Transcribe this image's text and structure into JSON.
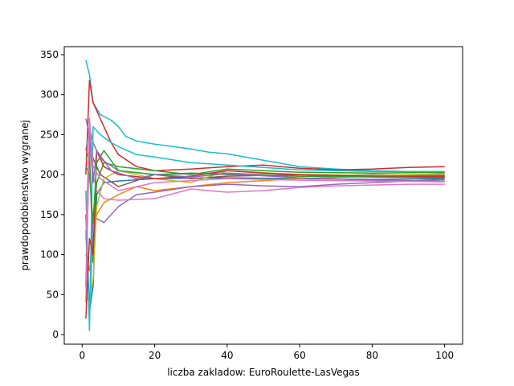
{
  "chart_data": {
    "type": "line",
    "xlabel": "liczba zakladow: EuroRoulette-LasVegas",
    "ylabel": "prawdopodobienstwo wygranej",
    "xlim": [
      -4.95,
      104.95
    ],
    "ylim": [
      -12,
      360
    ],
    "xticks": [
      0,
      20,
      40,
      60,
      80,
      100
    ],
    "yticks": [
      0,
      50,
      100,
      150,
      200,
      250,
      300,
      350
    ],
    "grid": false,
    "legend": "none",
    "series": [
      {
        "color": "#17becf",
        "values": [
          [
            1,
            343
          ],
          [
            2,
            325
          ],
          [
            3,
            290
          ],
          [
            5,
            275
          ],
          [
            8,
            268
          ],
          [
            10,
            260
          ],
          [
            12,
            248
          ],
          [
            15,
            242
          ],
          [
            20,
            238
          ],
          [
            25,
            235
          ],
          [
            30,
            232
          ],
          [
            35,
            228
          ],
          [
            40,
            226
          ],
          [
            50,
            218
          ],
          [
            60,
            210
          ],
          [
            70,
            207
          ],
          [
            80,
            205
          ],
          [
            90,
            204
          ],
          [
            100,
            202
          ]
        ]
      },
      {
        "color": "#d62728",
        "values": [
          [
            1,
            200
          ],
          [
            2,
            318
          ],
          [
            3,
            290
          ],
          [
            5,
            270
          ],
          [
            8,
            240
          ],
          [
            10,
            225
          ],
          [
            15,
            210
          ],
          [
            20,
            205
          ],
          [
            30,
            207
          ],
          [
            40,
            210
          ],
          [
            50,
            212
          ],
          [
            60,
            208
          ],
          [
            70,
            206
          ],
          [
            80,
            207
          ],
          [
            90,
            209
          ],
          [
            100,
            210
          ]
        ]
      },
      {
        "color": "#1f77b4",
        "values": [
          [
            1,
            150
          ],
          [
            2,
            30
          ],
          [
            3,
            60
          ],
          [
            4,
            175
          ],
          [
            6,
            190
          ],
          [
            10,
            192
          ],
          [
            20,
            195
          ],
          [
            40,
            196
          ],
          [
            60,
            195
          ],
          [
            80,
            194
          ],
          [
            100,
            195
          ]
        ]
      },
      {
        "color": "#ff7f0e",
        "values": [
          [
            1,
            100
          ],
          [
            2,
            80
          ],
          [
            3,
            120
          ],
          [
            4,
            150
          ],
          [
            6,
            165
          ],
          [
            10,
            175
          ],
          [
            15,
            185
          ],
          [
            20,
            180
          ],
          [
            30,
            185
          ],
          [
            40,
            190
          ],
          [
            60,
            195
          ],
          [
            80,
            198
          ],
          [
            100,
            200
          ]
        ]
      },
      {
        "color": "#2ca02c",
        "values": [
          [
            1,
            220
          ],
          [
            2,
            230
          ],
          [
            3,
            90
          ],
          [
            4,
            190
          ],
          [
            6,
            215
          ],
          [
            10,
            210
          ],
          [
            20,
            205
          ],
          [
            30,
            200
          ],
          [
            40,
            207
          ],
          [
            50,
            205
          ],
          [
            60,
            203
          ],
          [
            80,
            202
          ],
          [
            100,
            203
          ]
        ]
      },
      {
        "color": "#9467bd",
        "values": [
          [
            1,
            130
          ],
          [
            2,
            20
          ],
          [
            3,
            150
          ],
          [
            4,
            145
          ],
          [
            6,
            140
          ],
          [
            10,
            160
          ],
          [
            15,
            175
          ],
          [
            20,
            178
          ],
          [
            30,
            185
          ],
          [
            40,
            188
          ],
          [
            50,
            186
          ],
          [
            60,
            185
          ],
          [
            70,
            188
          ],
          [
            80,
            190
          ],
          [
            90,
            192
          ],
          [
            100,
            194
          ]
        ]
      },
      {
        "color": "#8c564b",
        "values": [
          [
            1,
            60
          ],
          [
            2,
            240
          ],
          [
            3,
            220
          ],
          [
            5,
            200
          ],
          [
            10,
            185
          ],
          [
            20,
            200
          ],
          [
            30,
            195
          ],
          [
            40,
            198
          ],
          [
            60,
            200
          ],
          [
            80,
            198
          ],
          [
            100,
            197
          ]
        ]
      },
      {
        "color": "#e377c2",
        "values": [
          [
            1,
            40
          ],
          [
            2,
            260
          ],
          [
            3,
            200
          ],
          [
            4,
            180
          ],
          [
            6,
            170
          ],
          [
            10,
            168
          ],
          [
            20,
            170
          ],
          [
            30,
            182
          ],
          [
            40,
            178
          ],
          [
            50,
            180
          ],
          [
            60,
            184
          ],
          [
            70,
            186
          ],
          [
            80,
            187
          ],
          [
            90,
            188
          ],
          [
            100,
            188
          ]
        ]
      },
      {
        "color": "#7f7f7f",
        "values": [
          [
            1,
            230
          ],
          [
            2,
            260
          ],
          [
            3,
            240
          ],
          [
            5,
            220
          ],
          [
            10,
            205
          ],
          [
            20,
            200
          ],
          [
            40,
            202
          ],
          [
            60,
            198
          ],
          [
            80,
            200
          ],
          [
            100,
            199
          ]
        ]
      },
      {
        "color": "#bcbd22",
        "values": [
          [
            1,
            50
          ],
          [
            2,
            40
          ],
          [
            3,
            70
          ],
          [
            4,
            160
          ],
          [
            6,
            195
          ],
          [
            10,
            205
          ],
          [
            20,
            195
          ],
          [
            30,
            190
          ],
          [
            40,
            205
          ],
          [
            60,
            200
          ],
          [
            80,
            199
          ],
          [
            100,
            201
          ]
        ]
      },
      {
        "color": "#17becf",
        "values": [
          [
            1,
            180
          ],
          [
            2,
            5
          ],
          [
            3,
            260
          ],
          [
            5,
            250
          ],
          [
            8,
            240
          ],
          [
            10,
            235
          ],
          [
            15,
            225
          ],
          [
            20,
            222
          ],
          [
            30,
            215
          ],
          [
            40,
            212
          ],
          [
            60,
            206
          ],
          [
            80,
            204
          ],
          [
            100,
            204
          ]
        ]
      },
      {
        "color": "#d62728",
        "values": [
          [
            1,
            20
          ],
          [
            2,
            120
          ],
          [
            3,
            100
          ],
          [
            4,
            230
          ],
          [
            6,
            210
          ],
          [
            10,
            200
          ],
          [
            20,
            195
          ],
          [
            30,
            198
          ],
          [
            40,
            205
          ],
          [
            50,
            202
          ],
          [
            60,
            200
          ],
          [
            80,
            198
          ],
          [
            100,
            198
          ]
        ]
      },
      {
        "color": "#2ca02c",
        "values": [
          [
            1,
            210
          ],
          [
            2,
            200
          ],
          [
            3,
            140
          ],
          [
            4,
            215
          ],
          [
            6,
            230
          ],
          [
            10,
            205
          ],
          [
            20,
            200
          ],
          [
            30,
            202
          ],
          [
            40,
            200
          ],
          [
            60,
            198
          ],
          [
            80,
            197
          ],
          [
            100,
            196
          ]
        ]
      },
      {
        "color": "#9467bd",
        "values": [
          [
            1,
            270
          ],
          [
            2,
            250
          ],
          [
            3,
            190
          ],
          [
            4,
            230
          ],
          [
            8,
            205
          ],
          [
            15,
            195
          ],
          [
            20,
            200
          ],
          [
            30,
            197
          ],
          [
            40,
            201
          ],
          [
            60,
            196
          ],
          [
            80,
            193
          ],
          [
            100,
            192
          ]
        ]
      },
      {
        "color": "#e377c2",
        "values": [
          [
            1,
            120
          ],
          [
            2,
            270
          ],
          [
            3,
            210
          ],
          [
            5,
            195
          ],
          [
            10,
            180
          ],
          [
            20,
            190
          ],
          [
            40,
            195
          ],
          [
            60,
            193
          ],
          [
            80,
            192
          ],
          [
            100,
            191
          ]
        ]
      }
    ]
  }
}
